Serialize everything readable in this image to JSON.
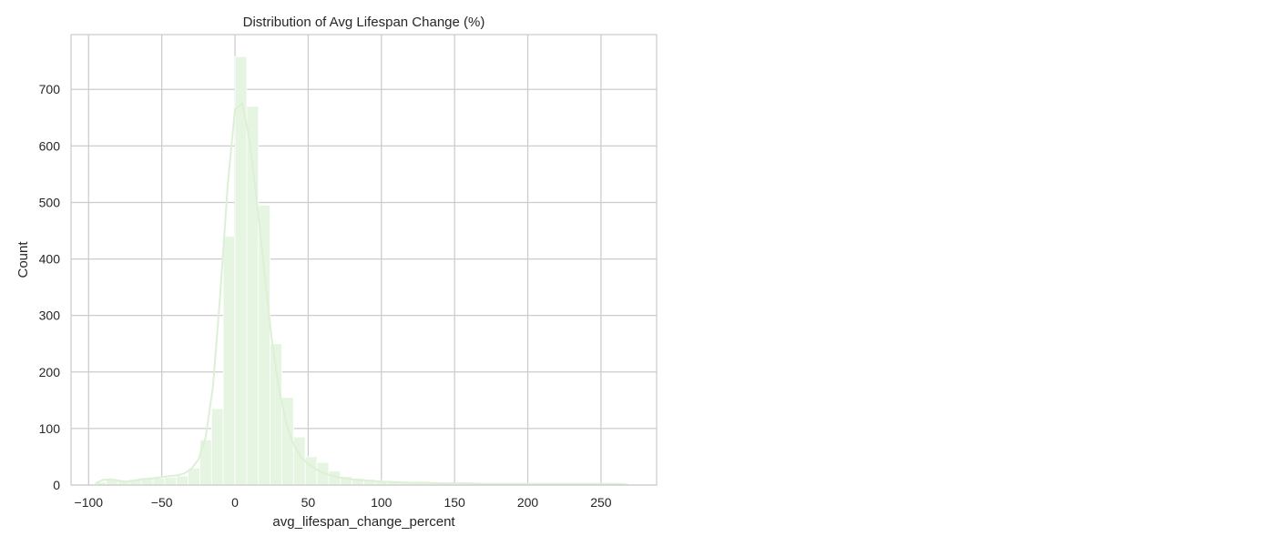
{
  "chart_data": {
    "type": "bar",
    "title": "Distribution of Avg Lifespan Change (%)",
    "xlabel": "avg_lifespan_change_percent",
    "ylabel": "Count",
    "xlim": [
      -112,
      288
    ],
    "ylim": [
      0,
      797
    ],
    "xticks": [
      -100,
      -50,
      0,
      50,
      100,
      150,
      200,
      250
    ],
    "xtick_labels": [
      "−100",
      "−50",
      "0",
      "50",
      "100",
      "150",
      "200",
      "250"
    ],
    "yticks": [
      0,
      100,
      200,
      300,
      400,
      500,
      600,
      700
    ],
    "ytick_labels": [
      "0",
      "100",
      "200",
      "300",
      "400",
      "500",
      "600",
      "700"
    ],
    "grid": true,
    "bin_width": 8,
    "bins_start": [
      -96,
      -88,
      -80,
      -72,
      -64,
      -56,
      -48,
      -40,
      -32,
      -24,
      -16,
      -8,
      0,
      8,
      16,
      24,
      32,
      40,
      48,
      56,
      64,
      72,
      80,
      88,
      96,
      104,
      112,
      120,
      128,
      136,
      144,
      152,
      160,
      168,
      176,
      184,
      192,
      200,
      208,
      216,
      224,
      232,
      240,
      248,
      256
    ],
    "counts": [
      5,
      10,
      8,
      10,
      12,
      12,
      14,
      16,
      30,
      80,
      135,
      440,
      758,
      670,
      495,
      250,
      155,
      85,
      50,
      40,
      25,
      15,
      12,
      10,
      8,
      5,
      4,
      4,
      4,
      3,
      3,
      2,
      2,
      2,
      2,
      2,
      2,
      1,
      1,
      1,
      2,
      2,
      2,
      2,
      1
    ],
    "kde": {
      "x": [
        -95,
        -90,
        -85,
        -80,
        -75,
        -70,
        -65,
        -60,
        -55,
        -50,
        -45,
        -40,
        -35,
        -30,
        -25,
        -20,
        -15,
        -10,
        -5,
        0,
        5,
        10,
        15,
        20,
        25,
        30,
        35,
        40,
        45,
        50,
        55,
        60,
        65,
        70,
        80,
        90,
        100,
        110,
        120,
        130,
        140,
        150,
        160,
        170,
        180,
        190,
        200,
        210,
        220,
        230,
        240,
        250,
        260,
        268
      ],
      "y": [
        4,
        9,
        10,
        8,
        6,
        7,
        10,
        11,
        12,
        14,
        16,
        17,
        20,
        28,
        45,
        85,
        175,
        340,
        530,
        665,
        675,
        610,
        500,
        380,
        260,
        170,
        110,
        72,
        50,
        37,
        28,
        22,
        17,
        14,
        10,
        8,
        6,
        5,
        4,
        4,
        3,
        3,
        3,
        2,
        2,
        2,
        2,
        2,
        2,
        2,
        2,
        2,
        2,
        1
      ]
    },
    "colors": {
      "bar_fill": "#e6f5e1",
      "bar_edge": "#ffffff",
      "kde_line": "#dcf0d6",
      "grid": "#cccccc",
      "frame": "#cccccc"
    }
  }
}
